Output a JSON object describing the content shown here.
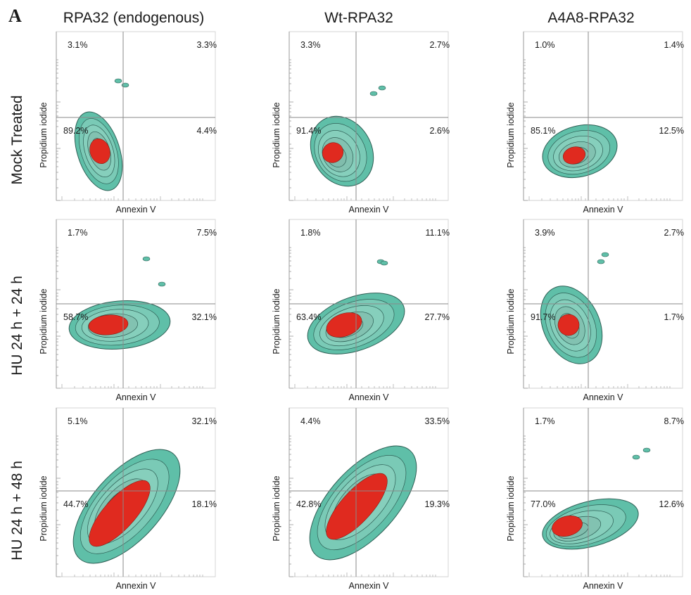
{
  "panel_letter": "A",
  "columns": [
    "RPA32 (endogenous)",
    "Wt-RPA32",
    "A4A8-RPA32"
  ],
  "rows": [
    "Mock Treated",
    "HU 24 h + 24 h",
    "HU 24 h + 48 h"
  ],
  "axis": {
    "x_label": "Annexin V",
    "y_label": "Propidium iodide"
  },
  "plots": [
    {
      "row": 0,
      "col": 0,
      "ul": "3.1%",
      "ur": "3.3%",
      "ll": "89.2%",
      "lr": "4.4%"
    },
    {
      "row": 0,
      "col": 1,
      "ul": "3.3%",
      "ur": "2.7%",
      "ll": "91.4%",
      "lr": "2.6%"
    },
    {
      "row": 0,
      "col": 2,
      "ul": "1.0%",
      "ur": "1.4%",
      "ll": "85.1%",
      "lr": "12.5%"
    },
    {
      "row": 1,
      "col": 0,
      "ul": "1.7%",
      "ur": "7.5%",
      "ll": "58.7%",
      "lr": "32.1%"
    },
    {
      "row": 1,
      "col": 1,
      "ul": "1.8%",
      "ur": "11.1%",
      "ll": "63.4%",
      "lr": "27.7%"
    },
    {
      "row": 1,
      "col": 2,
      "ul": "3.9%",
      "ur": "2.7%",
      "ll": "91.7%",
      "lr": "1.7%"
    },
    {
      "row": 2,
      "col": 0,
      "ul": "5.1%",
      "ur": "32.1%",
      "ll": "44.7%",
      "lr": "18.1%"
    },
    {
      "row": 2,
      "col": 1,
      "ul": "4.4%",
      "ur": "33.5%",
      "ll": "42.8%",
      "lr": "19.3%"
    },
    {
      "row": 2,
      "col": 2,
      "ul": "1.7%",
      "ur": "8.7%",
      "ll": "77.0%",
      "lr": "12.6%"
    }
  ],
  "colors": {
    "density_outer": "#5fbfa8",
    "density_mid": "#8fd3c1",
    "density_core": "#e02a1f",
    "contour": "#2e5f55",
    "axis": "#999999"
  }
}
